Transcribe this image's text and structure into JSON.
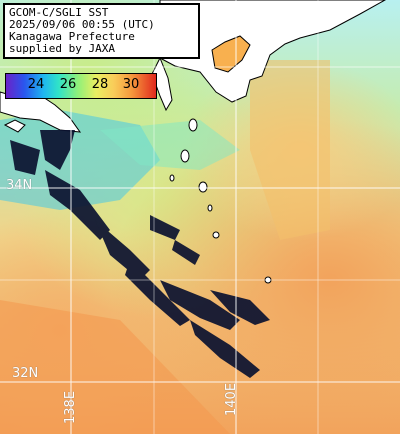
{
  "header": {
    "line1": "GCOM-C/SGLI SST",
    "line2": "2025/09/06 00:55 (UTC)",
    "line3": "Kanagawa Prefecture",
    "line4": "supplied by JAXA"
  },
  "colorbar": {
    "ticks": [
      "24",
      "26",
      "28",
      "30"
    ],
    "colors": [
      "#6a22c8",
      "#2a55ee",
      "#1fb6f0",
      "#30e3c8",
      "#8ff07a",
      "#e9ee62",
      "#f9cc59",
      "#f5973c",
      "#e1291e"
    ]
  },
  "grid_labels": {
    "lat_upper": "34N",
    "lat_lower": "32N",
    "lon_left": "138E",
    "lon_right": "140E"
  },
  "colors": {
    "land": "#ffffff",
    "coastline": "#000000",
    "grid": "#ffffff",
    "cloud_mask": "#0b1230"
  }
}
